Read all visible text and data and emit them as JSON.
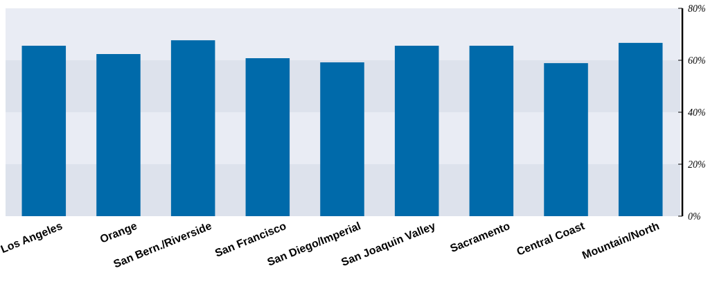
{
  "chart_data": {
    "type": "bar",
    "categories": [
      "Los Angeles",
      "Orange",
      "San Bern./Riverside",
      "San Francisco",
      "San Diego/Imperial",
      "San Joaquin Valley",
      "Sacramento",
      "Central Coast",
      "Mountain/North"
    ],
    "values": [
      65.6,
      62.4,
      67.7,
      60.8,
      59.2,
      65.6,
      65.6,
      58.9,
      66.7
    ],
    "color": "#006aaa",
    "ylim": [
      0,
      80
    ],
    "yticks": [
      {
        "value": 0,
        "label": "0%"
      },
      {
        "value": 20,
        "label": "20%"
      },
      {
        "value": 40,
        "label": "40%"
      },
      {
        "value": 60,
        "label": "60%"
      },
      {
        "value": 80,
        "label": "80%"
      }
    ],
    "bands": [
      {
        "axis": "y",
        "from": 0,
        "to": 20,
        "color": "#dde2ec"
      },
      {
        "axis": "y",
        "from": 40,
        "to": 60,
        "color": "#dde2ec"
      }
    ]
  }
}
